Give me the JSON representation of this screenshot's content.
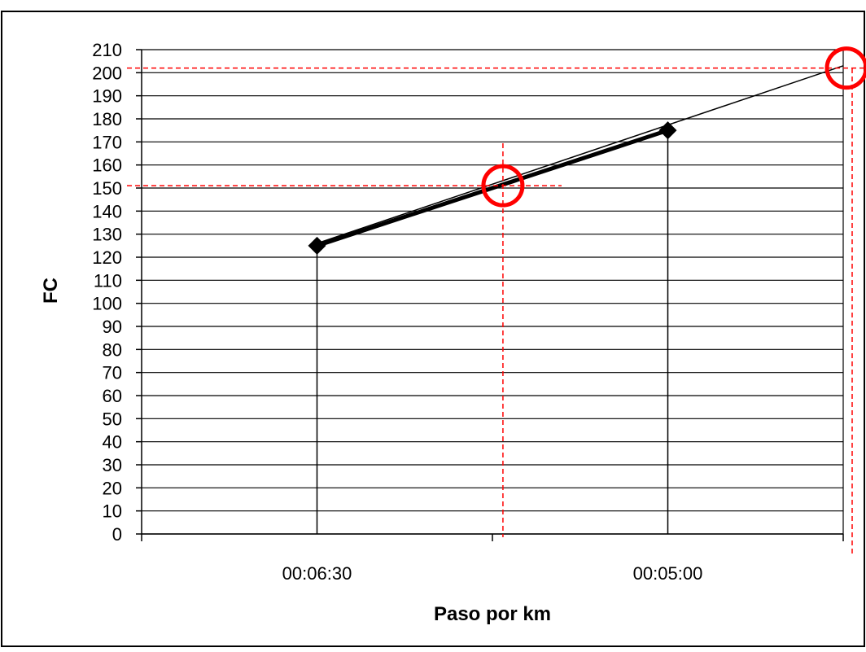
{
  "chart_data": {
    "type": "line",
    "title": "",
    "xlabel": "Paso por km",
    "ylabel": "FC",
    "categories": [
      "00:06:30",
      "00:05:00"
    ],
    "ylim": [
      0,
      210
    ],
    "y_ticks": [
      0,
      10,
      20,
      30,
      40,
      50,
      60,
      70,
      80,
      90,
      100,
      110,
      120,
      130,
      140,
      150,
      160,
      170,
      180,
      190,
      200,
      210
    ],
    "grid": true,
    "legend": "none",
    "series": [
      {
        "values": [
          125,
          175
        ],
        "color": "#000000"
      }
    ],
    "trendline": {
      "from": [
        0.5,
        126
      ],
      "to": [
        2.0,
        203
      ],
      "color": "#000000"
    },
    "annotations": [
      {
        "x": 1.0,
        "y": 151,
        "color": "#ff0000"
      },
      {
        "x": 2.0,
        "y": 202,
        "color": "#ff0000"
      }
    ]
  }
}
